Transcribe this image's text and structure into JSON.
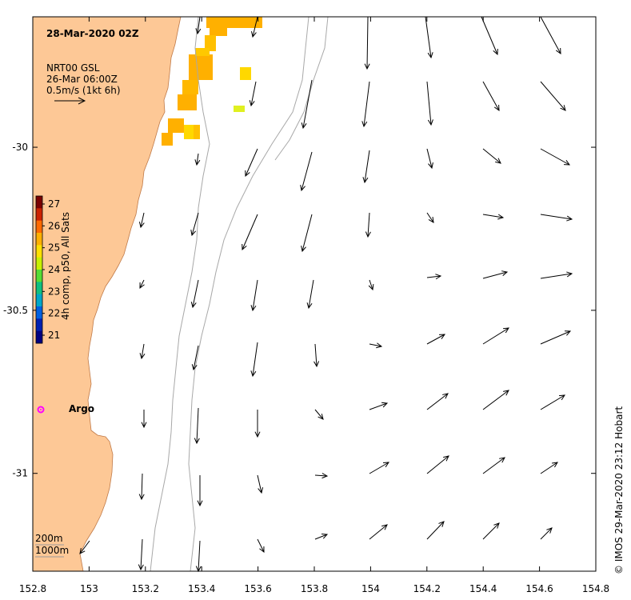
{
  "title": "28-Mar-2020 02Z",
  "legend": {
    "line1": "NRT00 GSL",
    "line2": "26-Mar 06:00Z",
    "line3": "0.5m/s (1kt 6h)"
  },
  "colorbar": {
    "label": "4h comp, p50, All Sats",
    "ticks": [
      "27",
      "26",
      "25",
      "24",
      "23",
      "22",
      "21"
    ],
    "colors": [
      "#7a0000",
      "#cc2200",
      "#ff6a00",
      "#ffb000",
      "#ffe000",
      "#c8f000",
      "#55dd33",
      "#10c080",
      "#00a8c8",
      "#0060e0",
      "#0020b0",
      "#000080"
    ]
  },
  "axes": {
    "x_ticks": [
      "152.8",
      "153",
      "153.2",
      "153.4",
      "153.6",
      "153.8",
      "154",
      "154.2",
      "154.4",
      "154.6",
      "154.8"
    ],
    "y_ticks": [
      "-30",
      "-30.5",
      "-31"
    ]
  },
  "float_label": "Argo",
  "scale_labels": {
    "contour1": "200m",
    "contour2": "1000m"
  },
  "credit": "© IMOS 29-Mar-2020 23:12 Hobart",
  "colors": {
    "land": "#fdc896",
    "coast_edge": "#c8956a",
    "contour": "#a8a8a8",
    "argo": "#ff00ff",
    "sst_orange": "#ffb000",
    "sst_yellow": "#ffd800"
  }
}
